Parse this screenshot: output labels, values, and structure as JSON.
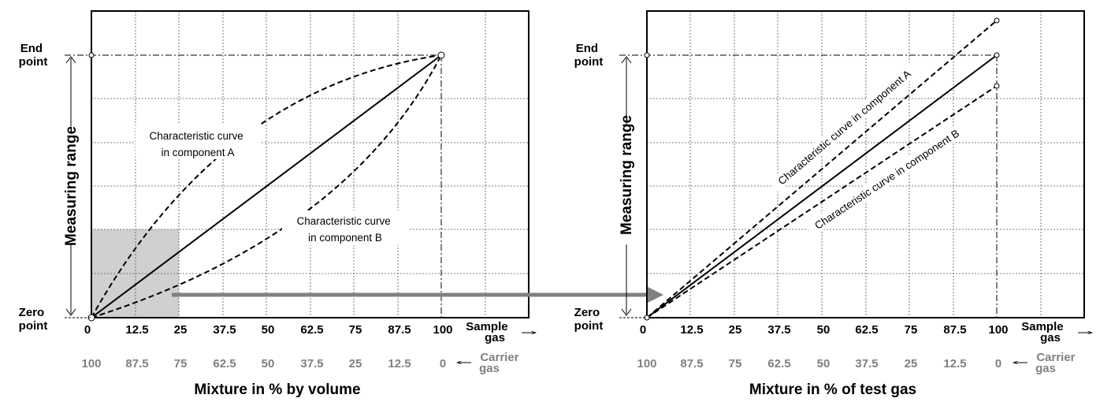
{
  "colors": {
    "frame": "#000000",
    "grid": "#555555",
    "axis_gray": "#808080",
    "shade": "#d0d0d0",
    "arrow": "#808080"
  },
  "left": {
    "end_point": [
      "End",
      "point"
    ],
    "zero_point": [
      "Zero",
      "point"
    ],
    "measuring_range": "Measuring range",
    "curve_a": [
      "Characteristic curve",
      "in component A"
    ],
    "curve_b": [
      "Characteristic curve",
      "in component B"
    ],
    "sample_gas": [
      "Sample",
      "gas"
    ],
    "carrier_gas": [
      "Carrier",
      "gas"
    ],
    "sample_ticks": [
      "0",
      "12.5",
      "25",
      "37.5",
      "50",
      "62.5",
      "75",
      "87.5",
      "100"
    ],
    "carrier_ticks": [
      "100",
      "87.5",
      "75",
      "62.5",
      "50",
      "37.5",
      "25",
      "12.5",
      "0"
    ],
    "xlabel": "Mixture in % by volume"
  },
  "right": {
    "end_point": [
      "End",
      "point"
    ],
    "zero_point": [
      "Zero",
      "point"
    ],
    "measuring_range": "Measuring range",
    "curve_a": "Characteristic curve in component A",
    "curve_b": "Characteristic curve in component B",
    "sample_gas": [
      "Sample",
      "gas"
    ],
    "carrier_gas": [
      "Carrier",
      "gas"
    ],
    "sample_ticks": [
      "0",
      "12.5",
      "25",
      "37.5",
      "50",
      "62.5",
      "75",
      "87.5",
      "100"
    ],
    "carrier_ticks": [
      "100",
      "87.5",
      "75",
      "62.5",
      "50",
      "37.5",
      "25",
      "12.5",
      "0"
    ],
    "xlabel": "Mixture in % of test gas"
  }
}
